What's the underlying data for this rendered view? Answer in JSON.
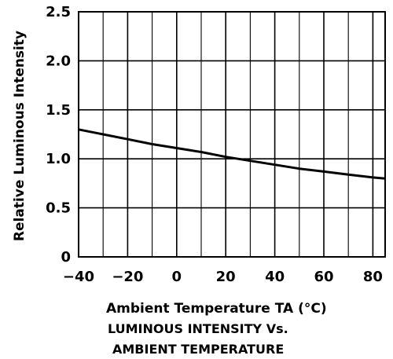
{
  "chart_data": {
    "type": "line",
    "title": "",
    "caption_lines": [
      "LUMINOUS INTENSITY Vs.",
      "AMBIENT TEMPERATURE"
    ],
    "xlabel": "Ambient Temperature TA (°C)",
    "ylabel": "Relative Luminous Intensity",
    "xlim": [
      -40,
      85
    ],
    "ylim": [
      0,
      2.5
    ],
    "xticks": [
      -40,
      -20,
      0,
      20,
      40,
      60,
      80
    ],
    "xtick_labels": [
      "−40",
      "−20",
      "0",
      "20",
      "40",
      "60",
      "80"
    ],
    "yticks": [
      0,
      0.5,
      1.0,
      1.5,
      2.0,
      2.5
    ],
    "ytick_labels": [
      "0",
      "0.5",
      "1.0",
      "1.5",
      "2.0",
      "2.5"
    ],
    "x_minor_gridlines": [
      -30,
      -10,
      10,
      30,
      50,
      70
    ],
    "grid": true,
    "series": [
      {
        "x": [
          -40,
          -30,
          -20,
          -10,
          0,
          10,
          20,
          30,
          40,
          50,
          60,
          70,
          80,
          85
        ],
        "y": [
          1.3,
          1.25,
          1.2,
          1.15,
          1.11,
          1.07,
          1.02,
          0.98,
          0.94,
          0.9,
          0.87,
          0.84,
          0.81,
          0.8
        ]
      }
    ],
    "line_color": "#000000",
    "grid_color": "#000000"
  }
}
